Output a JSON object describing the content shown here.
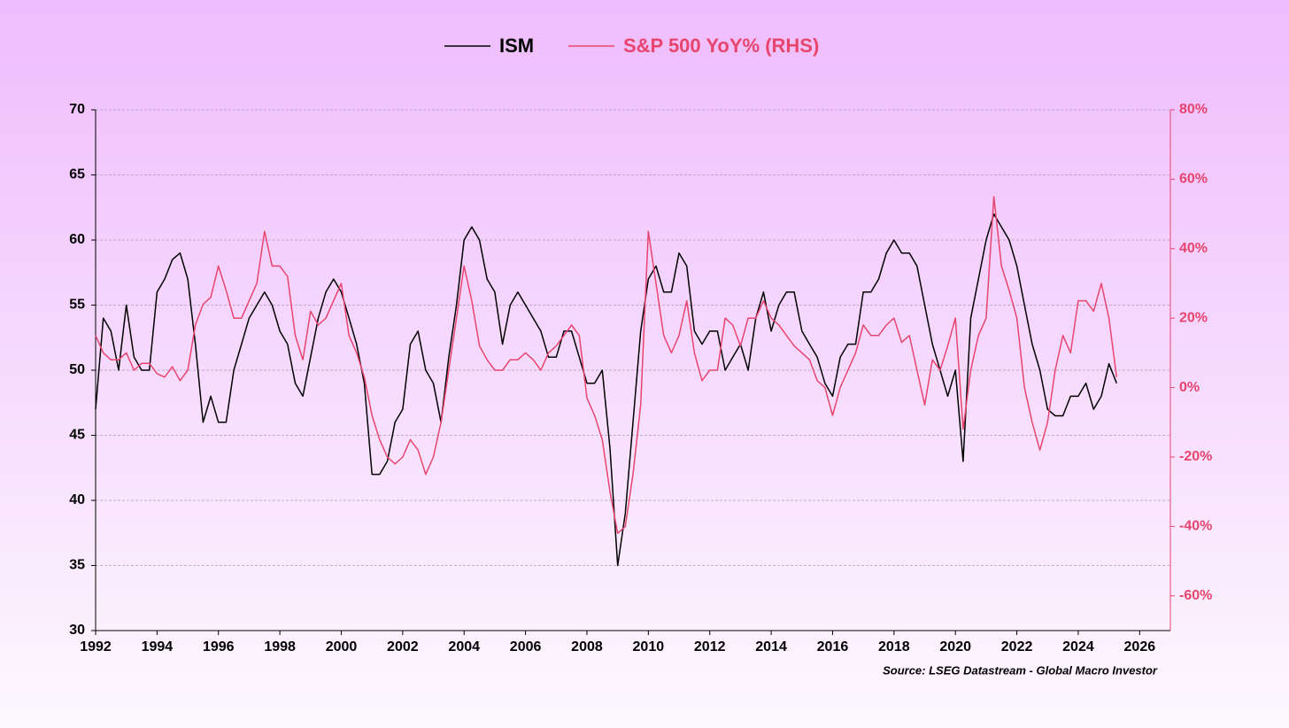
{
  "chart_data": {
    "type": "line",
    "source": "Source: LSEG Datastream - Global Macro Investor",
    "x": [
      1992,
      1992.25,
      1992.5,
      1992.75,
      1993,
      1993.25,
      1993.5,
      1993.75,
      1994,
      1994.25,
      1994.5,
      1994.75,
      1995,
      1995.25,
      1995.5,
      1995.75,
      1996,
      1996.25,
      1996.5,
      1996.75,
      1997,
      1997.25,
      1997.5,
      1997.75,
      1998,
      1998.25,
      1998.5,
      1998.75,
      1999,
      1999.25,
      1999.5,
      1999.75,
      2000,
      2000.25,
      2000.5,
      2000.75,
      2001,
      2001.25,
      2001.5,
      2001.75,
      2002,
      2002.25,
      2002.5,
      2002.75,
      2003,
      2003.25,
      2003.5,
      2003.75,
      2004,
      2004.25,
      2004.5,
      2004.75,
      2005,
      2005.25,
      2005.5,
      2005.75,
      2006,
      2006.25,
      2006.5,
      2006.75,
      2007,
      2007.25,
      2007.5,
      2007.75,
      2008,
      2008.25,
      2008.5,
      2008.75,
      2009,
      2009.25,
      2009.5,
      2009.75,
      2010,
      2010.25,
      2010.5,
      2010.75,
      2011,
      2011.25,
      2011.5,
      2011.75,
      2012,
      2012.25,
      2012.5,
      2012.75,
      2013,
      2013.25,
      2013.5,
      2013.75,
      2014,
      2014.25,
      2014.5,
      2014.75,
      2015,
      2015.25,
      2015.5,
      2015.75,
      2016,
      2016.25,
      2016.5,
      2016.75,
      2017,
      2017.25,
      2017.5,
      2017.75,
      2018,
      2018.25,
      2018.5,
      2018.75,
      2019,
      2019.25,
      2019.5,
      2019.75,
      2020,
      2020.25,
      2020.5,
      2020.75,
      2021,
      2021.25,
      2021.5,
      2021.75,
      2022,
      2022.25,
      2022.5,
      2022.75,
      2023,
      2023.25,
      2023.5,
      2023.75,
      2024,
      2024.25,
      2024.5,
      2024.75,
      2025,
      2025.25
    ],
    "series": [
      {
        "name": "ISM",
        "color": "#000000",
        "values": [
          47,
          54,
          53,
          50,
          55,
          51,
          50,
          50,
          56,
          57,
          58.5,
          59,
          57,
          52,
          46,
          48,
          46,
          46,
          50,
          52,
          54,
          55,
          56,
          55,
          53,
          52,
          49,
          48,
          51,
          54,
          56,
          57,
          56,
          54,
          52,
          49,
          42,
          42,
          43,
          46,
          47,
          52,
          53,
          50,
          49,
          46,
          51,
          55,
          60,
          61,
          60,
          57,
          56,
          52,
          55,
          56,
          55,
          54,
          53,
          51,
          51,
          53,
          53,
          51,
          49,
          49,
          50,
          44,
          35,
          39,
          46,
          53,
          57,
          58,
          56,
          56,
          59,
          58,
          53,
          52,
          53,
          53,
          50,
          51,
          52,
          50,
          54,
          56,
          53,
          55,
          56,
          56,
          53,
          52,
          51,
          49,
          48,
          51,
          52,
          52,
          56,
          56,
          57,
          59,
          60,
          59,
          59,
          58,
          55,
          52,
          50,
          48,
          50,
          43,
          54,
          57,
          60,
          62,
          61,
          60,
          58,
          55,
          52,
          50,
          47,
          46.5,
          46.5,
          48,
          48,
          49,
          47,
          48,
          50.5,
          49
        ]
      },
      {
        "name": "S&P 500 YoY% (RHS)",
        "color": "#e8456e",
        "axis": "y2",
        "values": [
          15,
          10,
          8,
          8,
          10,
          5,
          7,
          7,
          4,
          3,
          6,
          2,
          5,
          18,
          24,
          26,
          35,
          28,
          20,
          20,
          25,
          30,
          45,
          35,
          35,
          32,
          15,
          8,
          22,
          18,
          20,
          25,
          30,
          15,
          10,
          3,
          -8,
          -15,
          -20,
          -22,
          -20,
          -15,
          -18,
          -25,
          -20,
          -10,
          5,
          20,
          35,
          25,
          12,
          8,
          5,
          5,
          8,
          8,
          10,
          8,
          5,
          10,
          12,
          15,
          18,
          15,
          -3,
          -8,
          -15,
          -30,
          -42,
          -40,
          -25,
          -5,
          45,
          30,
          15,
          10,
          15,
          25,
          10,
          2,
          5,
          5,
          20,
          18,
          12,
          20,
          20,
          25,
          20,
          18,
          15,
          12,
          10,
          8,
          2,
          0,
          -8,
          0,
          5,
          10,
          18,
          15,
          15,
          18,
          20,
          13,
          15,
          5,
          -5,
          8,
          5,
          12,
          20,
          -12,
          5,
          15,
          20,
          55,
          35,
          28,
          20,
          0,
          -10,
          -18,
          -10,
          5,
          15,
          10,
          25,
          25,
          22,
          30,
          20,
          3
        ]
      }
    ],
    "xlim": [
      1992,
      2027
    ],
    "xticks": [
      1992,
      1994,
      1996,
      1998,
      2000,
      2002,
      2004,
      2006,
      2008,
      2010,
      2012,
      2014,
      2016,
      2018,
      2020,
      2022,
      2024,
      2026
    ],
    "ylim": [
      30,
      70
    ],
    "yticks": [
      30,
      35,
      40,
      45,
      50,
      55,
      60,
      65,
      70
    ],
    "y2lim": [
      -70,
      80
    ],
    "y2ticks": [
      {
        "value": 80,
        "label": "80%"
      },
      {
        "value": 60,
        "label": "60%"
      },
      {
        "value": 40,
        "label": "40%"
      },
      {
        "value": 20,
        "label": "20%"
      },
      {
        "value": 0,
        "label": "0%"
      },
      {
        "value": -20,
        "label": "-20%"
      },
      {
        "value": -40,
        "label": "-40%"
      },
      {
        "value": -60,
        "label": "-60%"
      }
    ],
    "grid": true,
    "legend": "top"
  }
}
